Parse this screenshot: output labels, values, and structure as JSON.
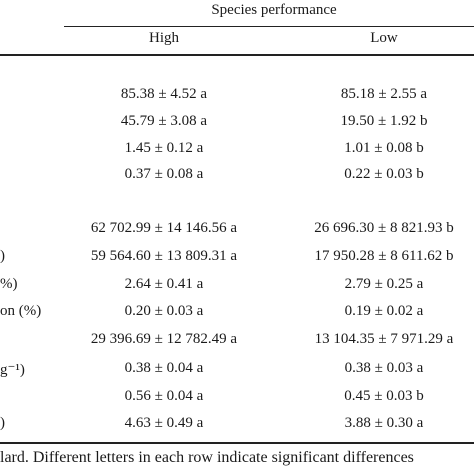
{
  "table": {
    "group_header": "Species performance",
    "columns": [
      "High",
      "Low"
    ],
    "rows": [
      {
        "label": "",
        "high": "85.38 ± 4.52 a",
        "low": "85.18 ± 2.55 a"
      },
      {
        "label": "",
        "high": "45.79 ± 3.08 a",
        "low": "19.50 ± 1.92 b"
      },
      {
        "label": "",
        "high": "1.45 ± 0.12 a",
        "low": "1.01 ± 0.08 b"
      },
      {
        "label": "",
        "high": "0.37 ± 0.08 a",
        "low": "0.22 ± 0.03 b"
      },
      {
        "label": "",
        "high": "62 702.99 ± 14 146.56 a",
        "low": "26 696.30 ± 8 821.93 b"
      },
      {
        "label": ")",
        "high": "59 564.60 ± 13 809.31 a",
        "low": "17 950.28 ± 8 611.62 b"
      },
      {
        "label": "%)",
        "high": "2.64 ± 0.41 a",
        "low": "2.79 ± 0.25 a"
      },
      {
        "label": "on (%)",
        "high": "0.20 ± 0.03 a",
        "low": "0.19 ± 0.02 a"
      },
      {
        "label": "",
        "high": "29 396.69 ± 12 782.49 a",
        "low": "13 104.35 ± 7 971.29 a"
      },
      {
        "label": "g⁻¹)",
        "high": "0.38 ± 0.04 a",
        "low": "0.38 ± 0.03 a"
      },
      {
        "label": "",
        "high": "0.56 ± 0.04 a",
        "low": "0.45 ± 0.03 b"
      },
      {
        "label": ")",
        "high": "4.63 ± 0.49 a",
        "low": "3.88 ± 0.30 a"
      }
    ],
    "footnote": "lard. Different letters in each row indicate significant differences"
  }
}
